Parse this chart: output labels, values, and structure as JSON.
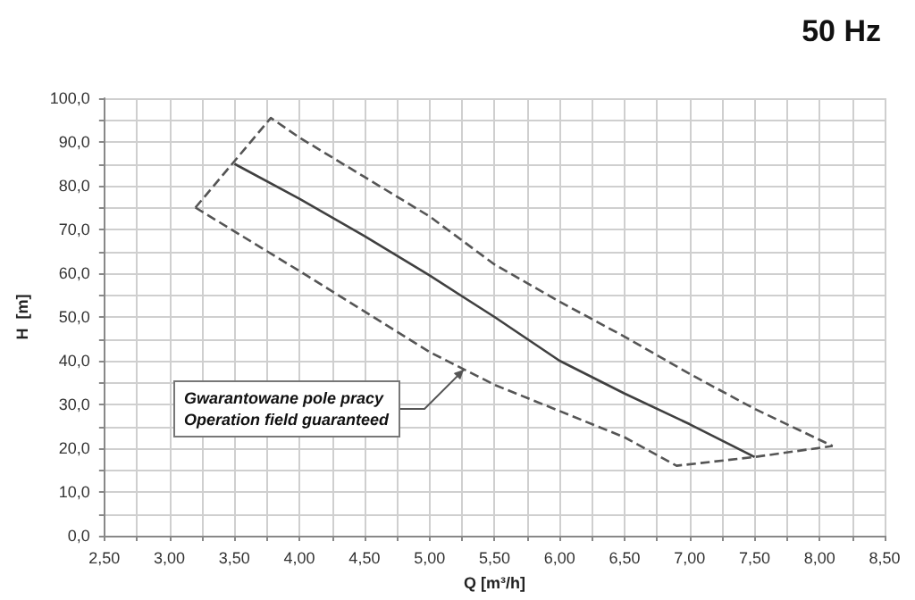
{
  "chart_data": {
    "type": "line",
    "title": "50 Hz",
    "xlabel": "Q [m³/h]",
    "ylabel": "H  [m]",
    "series": [
      {
        "color": "#404040",
        "line_style": "solid",
        "x": [
          3.5,
          4.0,
          4.5,
          5.0,
          5.5,
          6.0,
          6.5,
          7.0,
          7.5
        ],
        "values": [
          85,
          77,
          68.5,
          59.5,
          50,
          40,
          32.5,
          25.5,
          18
        ]
      },
      {
        "color": "#555555",
        "line_style": "dashed",
        "x": [
          3.2,
          3.78,
          4.0,
          4.5,
          5.0,
          5.5,
          6.0,
          6.5,
          7.0,
          7.5,
          8.1
        ],
        "values": [
          75,
          95.5,
          91,
          82,
          73,
          62,
          53.5,
          45.5,
          37,
          29,
          20.5
        ]
      },
      {
        "color": "#555555",
        "line_style": "dashed",
        "x": [
          3.2,
          4.0,
          5.0,
          5.5,
          6.0,
          6.5,
          6.9,
          7.5,
          8.1
        ],
        "values": [
          75,
          60.5,
          42,
          34.5,
          28.5,
          22.5,
          16,
          18,
          20.5
        ]
      }
    ],
    "xlim": [
      2.5,
      8.5
    ],
    "xticks": [
      {
        "value": 2.5,
        "label": "2,50"
      },
      {
        "value": 2.75,
        "label": null
      },
      {
        "value": 3,
        "label": "3,00"
      },
      {
        "value": 3.25,
        "label": null
      },
      {
        "value": 3.5,
        "label": "3,50"
      },
      {
        "value": 3.75,
        "label": null
      },
      {
        "value": 4,
        "label": "4,00"
      },
      {
        "value": 4.25,
        "label": null
      },
      {
        "value": 4.5,
        "label": "4,50"
      },
      {
        "value": 4.75,
        "label": null
      },
      {
        "value": 5,
        "label": "5,00"
      },
      {
        "value": 5.25,
        "label": null
      },
      {
        "value": 5.5,
        "label": "5,50"
      },
      {
        "value": 5.75,
        "label": null
      },
      {
        "value": 6,
        "label": "6,00"
      },
      {
        "value": 6.25,
        "label": null
      },
      {
        "value": 6.5,
        "label": "6,50"
      },
      {
        "value": 6.75,
        "label": null
      },
      {
        "value": 7,
        "label": "7,00"
      },
      {
        "value": 7.25,
        "label": null
      },
      {
        "value": 7.5,
        "label": "7,50"
      },
      {
        "value": 7.75,
        "label": null
      },
      {
        "value": 8,
        "label": "8,00"
      },
      {
        "value": 8.25,
        "label": null
      },
      {
        "value": 8.5,
        "label": "8,50"
      }
    ],
    "ylim": [
      0,
      100
    ],
    "yticks": [
      {
        "value": 0,
        "label": "0,0"
      },
      {
        "value": 5,
        "label": null
      },
      {
        "value": 10,
        "label": "10,0"
      },
      {
        "value": 15,
        "label": null
      },
      {
        "value": 20,
        "label": "20,0"
      },
      {
        "value": 25,
        "label": null
      },
      {
        "value": 30,
        "label": "30,0"
      },
      {
        "value": 35,
        "label": null
      },
      {
        "value": 40,
        "label": "40,0"
      },
      {
        "value": 45,
        "label": null
      },
      {
        "value": 50,
        "label": "50,0"
      },
      {
        "value": 55,
        "label": null
      },
      {
        "value": 60,
        "label": "60,0"
      },
      {
        "value": 65,
        "label": null
      },
      {
        "value": 70,
        "label": "70,0"
      },
      {
        "value": 75,
        "label": null
      },
      {
        "value": 80,
        "label": "80,0"
      },
      {
        "value": 85,
        "label": null
      },
      {
        "value": 90,
        "label": "90,0"
      },
      {
        "value": 95,
        "label": null
      },
      {
        "value": 100,
        "label": "100,0"
      }
    ],
    "grid": true,
    "marker": "none",
    "annotations": [
      "Gwarantowane pole pracy\nOperation field guaranteed"
    ]
  }
}
